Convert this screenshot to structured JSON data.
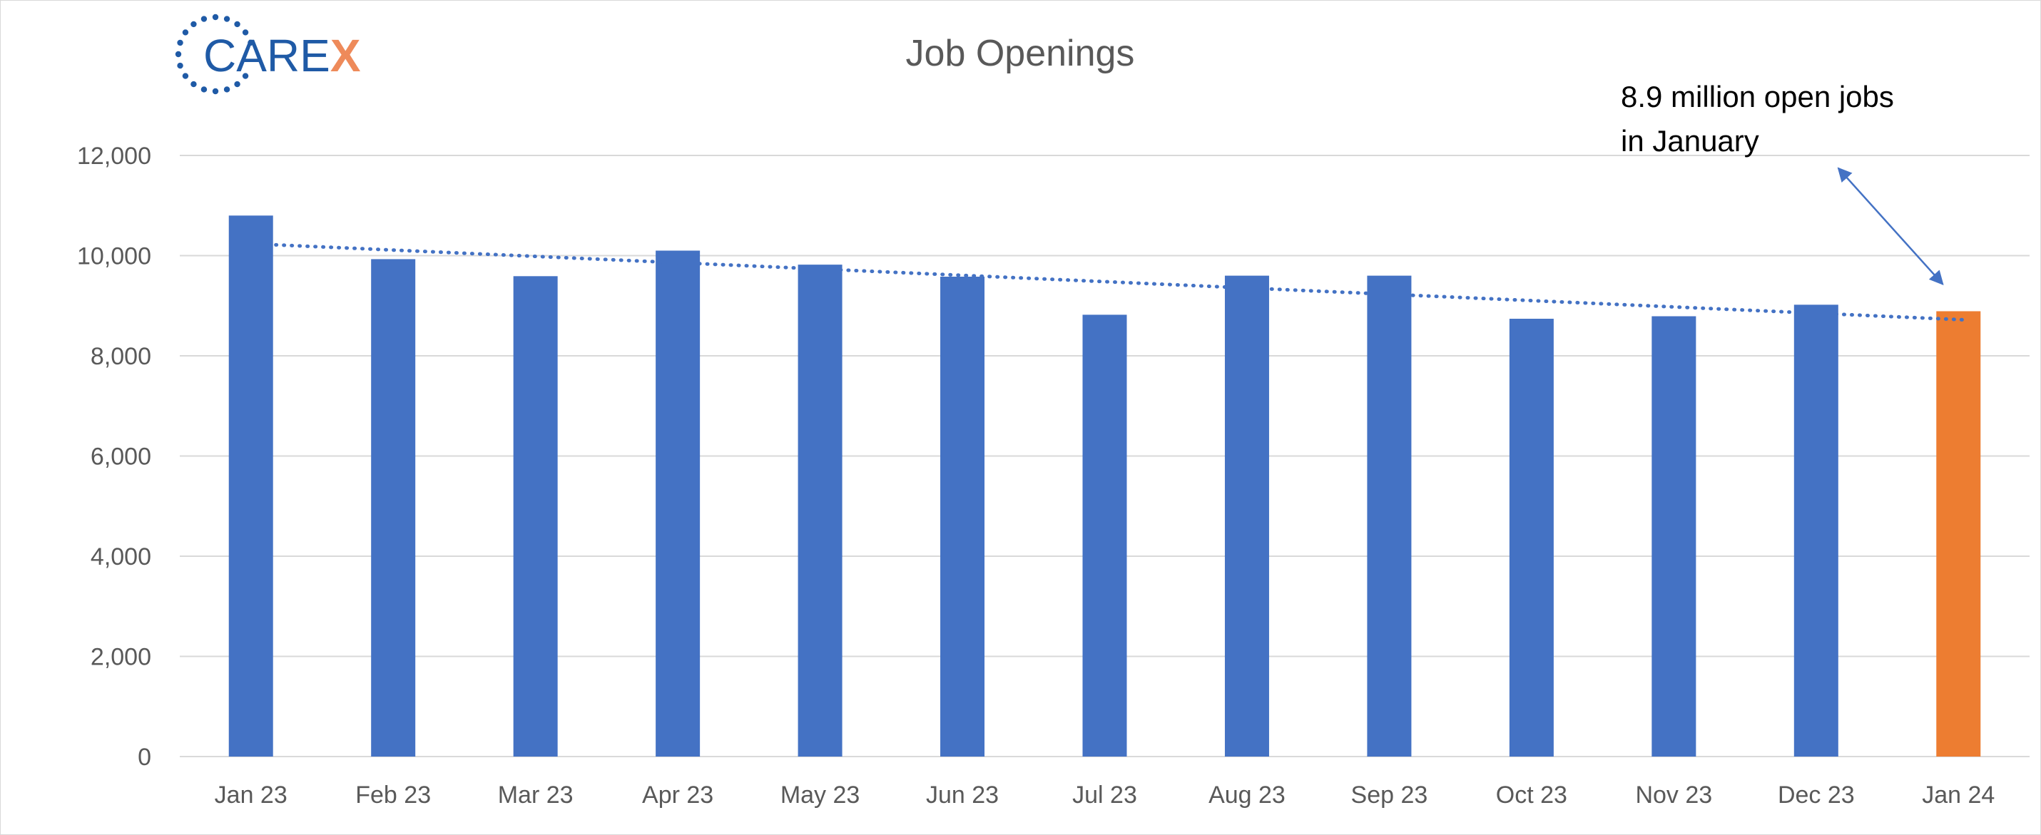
{
  "logo": {
    "text_main": "CARE",
    "text_accent": "X",
    "main_color": "#1f5aa6",
    "accent_color": "#ee8a5a"
  },
  "chart_data": {
    "type": "bar",
    "title": "Job Openings",
    "xlabel": "",
    "ylabel": "",
    "categories": [
      "Jan 23",
      "Feb 23",
      "Mar 23",
      "Apr 23",
      "May 23",
      "Jun 23",
      "Jul 23",
      "Aug 23",
      "Sep 23",
      "Oct 23",
      "Nov 23",
      "Dec 23",
      "Jan 24"
    ],
    "values": [
      10800,
      9930,
      9590,
      10100,
      9820,
      9580,
      8820,
      9600,
      9600,
      8740,
      8790,
      9020,
      8890
    ],
    "ylim": [
      0,
      12000
    ],
    "yticks": [
      0,
      2000,
      4000,
      6000,
      8000,
      10000,
      12000
    ],
    "ytick_labels": [
      "0",
      "2,000",
      "4,000",
      "6,000",
      "8,000",
      "10,000",
      "12,000"
    ],
    "grid": true,
    "bar_color": "#4472c4",
    "highlight_index": 12,
    "highlight_color": "#ed7d31",
    "trendline": {
      "style": "dotted",
      "color": "#4472c4",
      "start_value": 10250,
      "end_value": 8720
    },
    "annotation": {
      "lines": [
        "8.9 million open jobs",
        "in January"
      ],
      "target_index": 12,
      "arrow_color": "#4472c4"
    }
  }
}
